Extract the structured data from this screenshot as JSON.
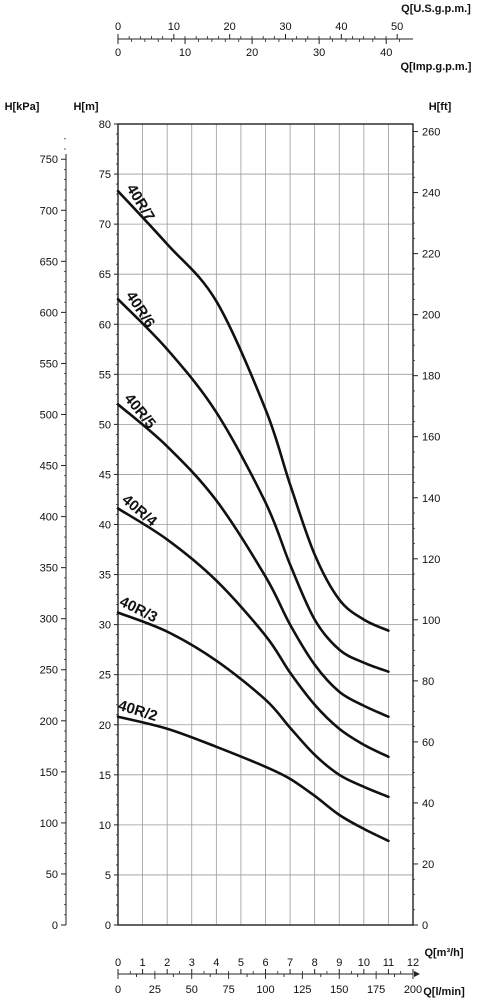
{
  "chart_data": {
    "type": "line",
    "title": "",
    "x_primary": {
      "unit_label": "Q[m³/h]",
      "ticks": [
        "0",
        "1",
        "2",
        "3",
        "4",
        "5",
        "6",
        "7",
        "8",
        "9",
        "10",
        "11",
        "12"
      ],
      "range": [
        0,
        12
      ]
    },
    "x_secondary_lmin": {
      "unit_label": "Q[l/min]",
      "ticks": [
        "0",
        "25",
        "50",
        "75",
        "100",
        "125",
        "150",
        "175",
        "200"
      ],
      "range": [
        0,
        200
      ]
    },
    "x_top_us": {
      "unit_label": "Q[U.S.g.p.m.]",
      "ticks": [
        "0",
        "10",
        "20",
        "30",
        "40",
        "50"
      ],
      "range": [
        0,
        52.83
      ]
    },
    "x_top_imp": {
      "unit_label": "Q[Imp.g.p.m.]",
      "ticks": [
        "0",
        "10",
        "20",
        "30",
        "40"
      ],
      "range": [
        0,
        44
      ]
    },
    "y_left_m": {
      "unit_label": "H[m]",
      "ticks": [
        "0",
        "5",
        "10",
        "15",
        "20",
        "25",
        "30",
        "35",
        "40",
        "45",
        "50",
        "55",
        "60",
        "65",
        "70",
        "75",
        "80"
      ],
      "range": [
        0,
        80
      ]
    },
    "y_left_kpa": {
      "unit_label": "H[kPa]",
      "ticks": [
        "0",
        "50",
        "100",
        "150",
        "200",
        "250",
        "300",
        "350",
        "400",
        "450",
        "500",
        "550",
        "600",
        "650",
        "700",
        "750"
      ],
      "range": [
        0,
        784.5
      ]
    },
    "y_right_ft": {
      "unit_label": "H[ft]",
      "ticks": [
        "0",
        "20",
        "40",
        "60",
        "80",
        "100",
        "120",
        "140",
        "160",
        "180",
        "200",
        "220",
        "240",
        "260"
      ],
      "range": [
        0,
        262.47
      ]
    },
    "grid": true,
    "series": [
      {
        "name": "40R/2",
        "x": [
          0,
          2,
          4,
          6,
          7,
          8,
          9,
          10,
          11
        ],
        "values": [
          20.8,
          19.6,
          17.8,
          15.8,
          14.6,
          12.9,
          11.0,
          9.6,
          8.4
        ]
      },
      {
        "name": "40R/3",
        "x": [
          0,
          2,
          4,
          6,
          7,
          8,
          9,
          10,
          11
        ],
        "values": [
          31.2,
          29.3,
          26.4,
          22.5,
          19.7,
          17.0,
          15.0,
          13.8,
          12.8
        ]
      },
      {
        "name": "40R/4",
        "x": [
          0,
          2,
          4,
          6,
          7,
          8,
          9,
          10,
          11
        ],
        "values": [
          41.6,
          38.5,
          34.4,
          28.9,
          25.2,
          22.0,
          19.6,
          18.0,
          16.8
        ]
      },
      {
        "name": "40R/5",
        "x": [
          0,
          2,
          4,
          6,
          7,
          8,
          9,
          10,
          11
        ],
        "values": [
          52.0,
          47.8,
          42.4,
          34.8,
          30.0,
          26.0,
          23.3,
          21.9,
          20.8
        ]
      },
      {
        "name": "40R/6",
        "x": [
          0,
          2,
          4,
          6,
          7,
          8,
          9,
          10,
          11
        ],
        "values": [
          62.5,
          57.5,
          51.2,
          42.2,
          36.0,
          30.5,
          27.5,
          26.2,
          25.3
        ]
      },
      {
        "name": "40R/7",
        "x": [
          0,
          2,
          4,
          6,
          7,
          8,
          9,
          10,
          11
        ],
        "values": [
          73.3,
          68.0,
          62.3,
          51.5,
          44.0,
          37.0,
          32.5,
          30.5,
          29.4
        ]
      }
    ]
  }
}
